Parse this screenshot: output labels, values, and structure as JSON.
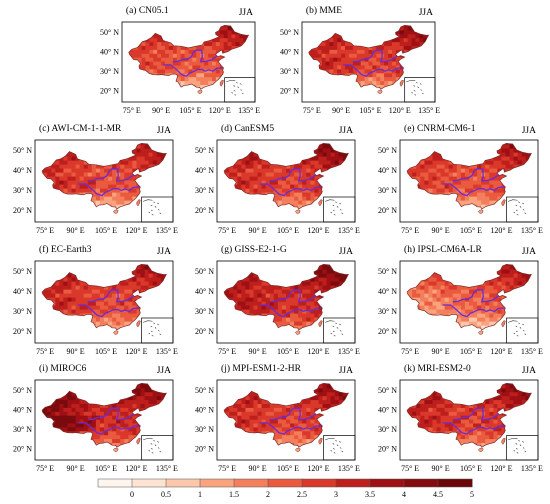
{
  "season": "JJA",
  "lat_labels": [
    "50° N",
    "40° N",
    "30° N",
    "20° N"
  ],
  "lon_labels": [
    "75° E",
    "90° E",
    "105° E",
    "120° E",
    "135° E"
  ],
  "colors": {
    "border": "#7a2a2a",
    "river": "#6b2bd6",
    "c0": "#fff5ef",
    "c1": "#fde3d2",
    "c2": "#fcc7aa",
    "c3": "#f9a47f",
    "c4": "#f47f5c",
    "c5": "#ea5a3f",
    "c6": "#d9382a",
    "c7": "#bd1f1c",
    "c8": "#9e1014",
    "c9": "#7a0a0e"
  },
  "panels": [
    {
      "title": "(a) CN05.1",
      "base": 0.56,
      "north": 0.18,
      "south": -0.28,
      "west": 0.05,
      "east": 0.1
    },
    {
      "title": "(b) MME",
      "base": 0.62,
      "north": 0.16,
      "south": -0.25,
      "west": 0.08,
      "east": 0.1
    },
    {
      "title": "(c) AWI-CM-1-1-MR",
      "base": 0.58,
      "north": 0.14,
      "south": -0.3,
      "west": 0.1,
      "east": 0.08
    },
    {
      "title": "(d) CanESM5",
      "base": 0.62,
      "north": 0.2,
      "south": -0.24,
      "west": 0.06,
      "east": 0.12
    },
    {
      "title": "(e) CNRM-CM6-1",
      "base": 0.58,
      "north": 0.16,
      "south": -0.28,
      "west": 0.04,
      "east": 0.1
    },
    {
      "title": "(f) EC-Earth3",
      "base": 0.6,
      "north": 0.18,
      "south": -0.26,
      "west": 0.1,
      "east": 0.06
    },
    {
      "title": "(g) GISS-E2-1-G",
      "base": 0.68,
      "north": 0.16,
      "south": -0.2,
      "west": 0.08,
      "east": 0.12
    },
    {
      "title": "(h) IPSL-CM6A-LR",
      "base": 0.52,
      "north": 0.2,
      "south": -0.3,
      "west": -0.08,
      "east": 0.12
    },
    {
      "title": "(i) MIROC6",
      "base": 0.7,
      "north": 0.18,
      "south": -0.22,
      "west": 0.22,
      "east": 0.02
    },
    {
      "title": "(j) MPI-ESM1-2-HR",
      "base": 0.62,
      "north": 0.16,
      "south": -0.24,
      "west": 0.06,
      "east": 0.1
    },
    {
      "title": "(k) MRI-ESM2-0",
      "base": 0.63,
      "north": 0.18,
      "south": -0.22,
      "west": 0.08,
      "east": 0.1
    }
  ],
  "colorbar": {
    "labels": [
      "0",
      "0.5",
      "1",
      "1.5",
      "2",
      "2.5",
      "3",
      "3.5",
      "4",
      "4.5",
      "5"
    ],
    "classes": 11
  }
}
